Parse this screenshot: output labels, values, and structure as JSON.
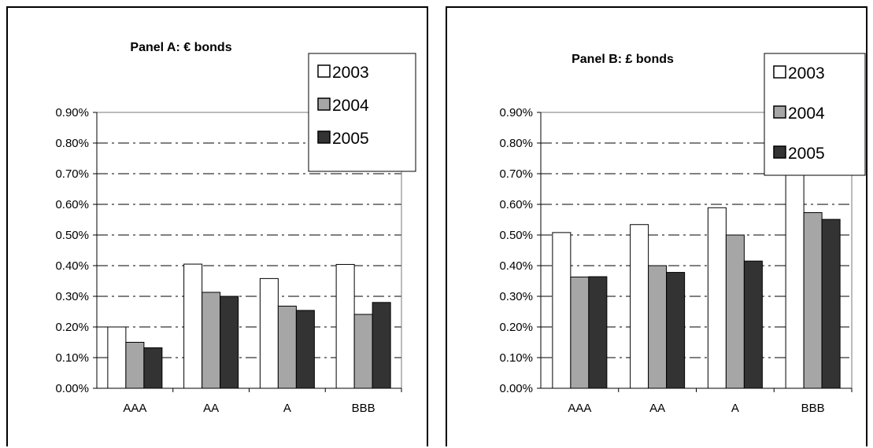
{
  "chart_data": [
    {
      "type": "bar",
      "title": "Panel A: € bonds",
      "categories": [
        "AAA",
        "AA",
        "A",
        "BBB"
      ],
      "ylim": [
        0,
        0.009
      ],
      "yticks": [
        "0.00%",
        "0.10%",
        "0.20%",
        "0.30%",
        "0.40%",
        "0.50%",
        "0.60%",
        "0.70%",
        "0.80%",
        "0.90%"
      ],
      "grid": true,
      "legend_placement": "top-right",
      "series": [
        {
          "name": "2003",
          "color": "#ffffff",
          "values": [
            0.002,
            0.00405,
            0.00358,
            0.00404
          ]
        },
        {
          "name": "2004",
          "color": "#a6a6a6",
          "values": [
            0.0015,
            0.00313,
            0.00268,
            0.00241
          ]
        },
        {
          "name": "2005",
          "color": "#333333",
          "values": [
            0.00132,
            0.003,
            0.00254,
            0.0028
          ]
        }
      ]
    },
    {
      "type": "bar",
      "title": "Panel B: £ bonds",
      "categories": [
        "AAA",
        "AA",
        "A",
        "BBB"
      ],
      "ylim": [
        0,
        0.009
      ],
      "yticks": [
        "0.00%",
        "0.10%",
        "0.20%",
        "0.30%",
        "0.40%",
        "0.50%",
        "0.60%",
        "0.70%",
        "0.80%",
        "0.90%"
      ],
      "grid": true,
      "legend_placement": "top-right",
      "series": [
        {
          "name": "2003",
          "color": "#ffffff",
          "values": [
            0.00508,
            0.00534,
            0.00589,
            0.0072
          ]
        },
        {
          "name": "2004",
          "color": "#a6a6a6",
          "values": [
            0.00363,
            0.004,
            0.005,
            0.00573
          ]
        },
        {
          "name": "2005",
          "color": "#333333",
          "values": [
            0.00364,
            0.00378,
            0.00415,
            0.00551
          ]
        }
      ]
    }
  ]
}
